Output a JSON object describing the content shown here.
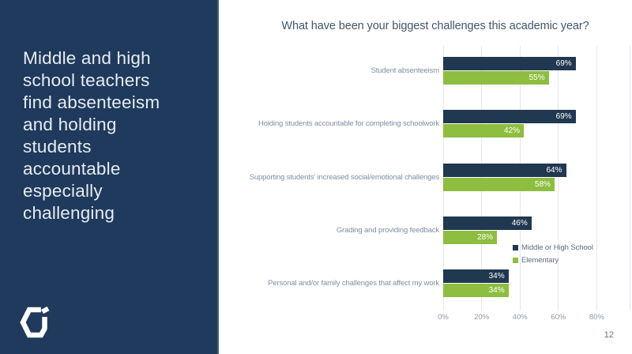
{
  "sidebar": {
    "headline": "Middle and high\nschool teachers\nfind absenteeism\nand holding\nstudents\naccountable\nespecially\nchallenging",
    "logo": "ci-hexagon-logo"
  },
  "page_number": "12",
  "colors": {
    "sidebar_bg": "#1f3a5c",
    "middle_high_bar": "#203850",
    "elementary_bar": "#8dbe3f",
    "title_text": "#46556b",
    "category_label_text": "#7e8ea3",
    "axis_label_text": "#8a99ab",
    "legend_text": "#5c6d83",
    "gridline": "#e4e7eb"
  },
  "chart_data": {
    "type": "bar",
    "orientation": "horizontal",
    "title": "What have been your biggest challenges this academic year?",
    "categories": [
      "Student absenteeism",
      "Holding students accountable for completing schoolwork",
      "Supporting students' increased social/emotional challenges",
      "Grading and providing feedback",
      "Personal and/or family challenges that affect my work"
    ],
    "series": [
      {
        "name": "Middle or High School",
        "color": "#203850",
        "values": [
          69,
          69,
          64,
          46,
          34
        ]
      },
      {
        "name": "Elementary",
        "color": "#8dbe3f",
        "values": [
          55,
          42,
          58,
          28,
          34
        ]
      }
    ],
    "value_suffix": "%",
    "x_ticks": [
      "0%",
      "20%",
      "40%",
      "60%",
      "80%"
    ],
    "xlim": [
      0,
      100
    ],
    "grid": true,
    "legend_position": "inside-right-lower"
  }
}
